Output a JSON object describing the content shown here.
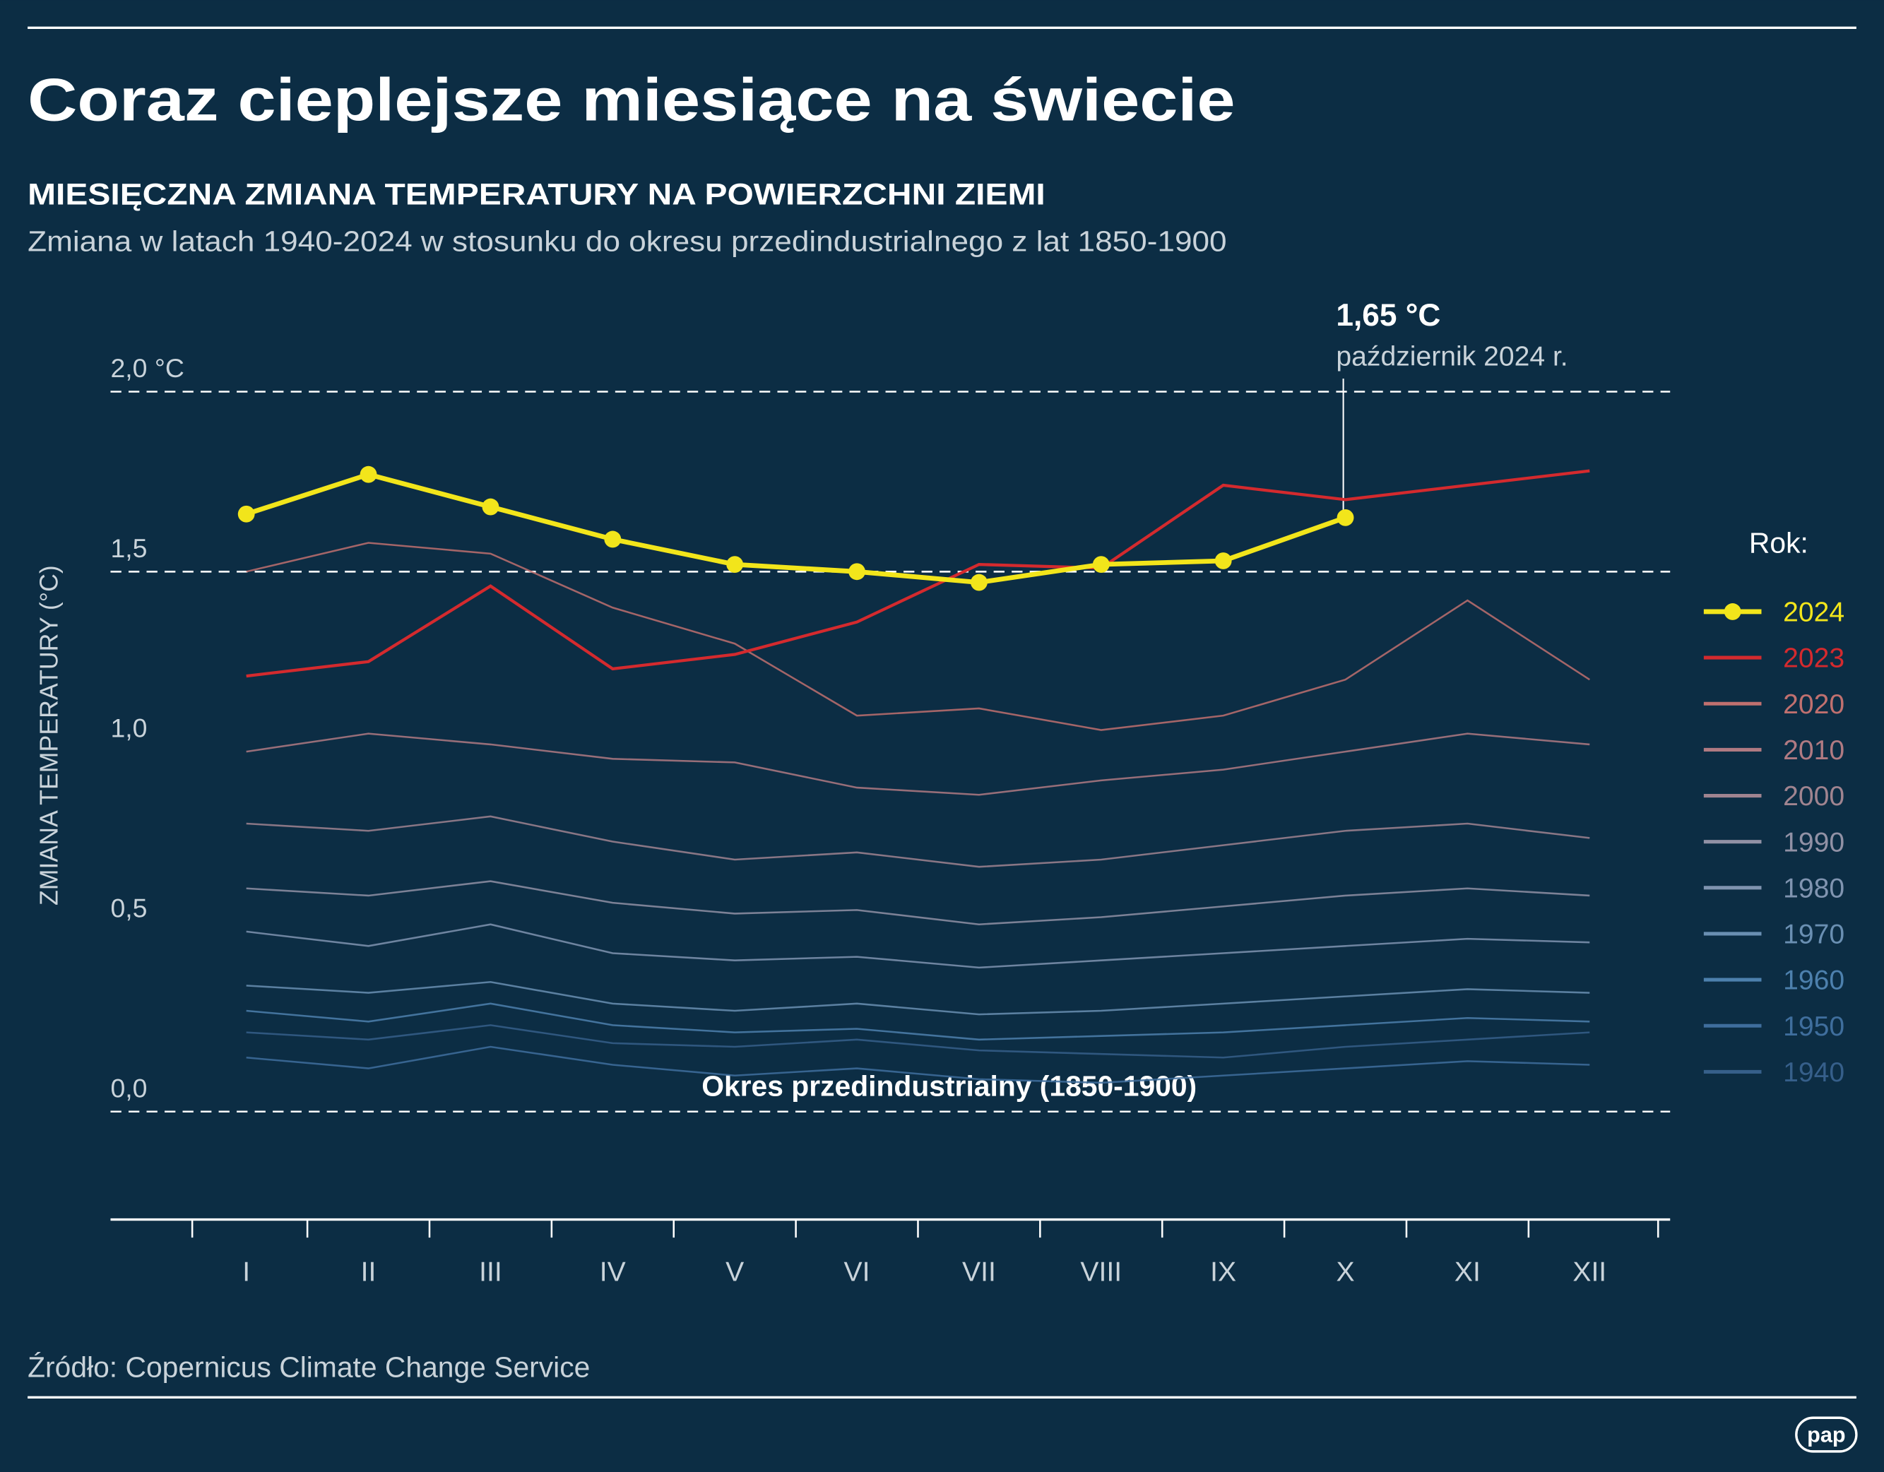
{
  "chart_data": {
    "type": "line",
    "title": "Coraz cieplejsze miesiące na świecie",
    "subtitle": "MIESIĘCZNA ZMIANA TEMPERATURY NA POWIERZCHNI ZIEMI",
    "description": "Zmiana w latach 1940-2024 w stosunku do okresu przedindustrialnego z lat 1850-1900",
    "y_axis_label": "ZMIANA TEMPERATURY (°C)",
    "legend_title": "Rok:",
    "baseline_label": "Okres przedindustrialny (1850-1900)",
    "annotation": {
      "value_label": "1,65 °C",
      "text": "październik 2024 r."
    },
    "source": "Źródło: Copernicus Climate Change Service",
    "logo": "pap",
    "categories": [
      "I",
      "II",
      "III",
      "IV",
      "V",
      "VI",
      "VII",
      "VIII",
      "IX",
      "X",
      "XI",
      "XII"
    ],
    "ylim": [
      -0.3,
      2.3
    ],
    "yticks": [
      {
        "value": 0,
        "label": "0,0"
      },
      {
        "value": 0.5,
        "label": "0,5"
      },
      {
        "value": 1,
        "label": "1,0"
      },
      {
        "value": 1.5,
        "label": "1,5"
      },
      {
        "value": 2,
        "label": "2,0 °C"
      }
    ],
    "dashed_lines": [
      0,
      1.5,
      2
    ],
    "series": [
      {
        "name": "2024",
        "color": "#f2e51b",
        "markers": true,
        "values": [
          1.66,
          1.77,
          1.68,
          1.59,
          1.52,
          1.5,
          1.47,
          1.52,
          1.53,
          1.65,
          null,
          null
        ]
      },
      {
        "name": "2023",
        "color": "#d42a2e",
        "values": [
          1.21,
          1.25,
          1.46,
          1.23,
          1.27,
          1.36,
          1.52,
          1.51,
          1.74,
          1.7,
          1.74,
          1.78
        ]
      },
      {
        "name": "2020",
        "color": "#c0706f",
        "values": [
          1.5,
          1.58,
          1.55,
          1.4,
          1.3,
          1.1,
          1.12,
          1.06,
          1.1,
          1.2,
          1.42,
          1.2
        ]
      },
      {
        "name": "2010",
        "color": "#b07a82",
        "values": [
          1.0,
          1.05,
          1.02,
          0.98,
          0.97,
          0.9,
          0.88,
          0.92,
          0.95,
          1.0,
          1.05,
          1.02
        ]
      },
      {
        "name": "2000",
        "color": "#a08490",
        "values": [
          0.8,
          0.78,
          0.82,
          0.75,
          0.7,
          0.72,
          0.68,
          0.7,
          0.74,
          0.78,
          0.8,
          0.76
        ]
      },
      {
        "name": "1990",
        "color": "#9191a5",
        "values": [
          0.62,
          0.6,
          0.64,
          0.58,
          0.55,
          0.56,
          0.52,
          0.54,
          0.57,
          0.6,
          0.62,
          0.6
        ]
      },
      {
        "name": "1980",
        "color": "#8094b0",
        "values": [
          0.5,
          0.46,
          0.52,
          0.44,
          0.42,
          0.43,
          0.4,
          0.42,
          0.44,
          0.46,
          0.48,
          0.47
        ]
      },
      {
        "name": "1970",
        "color": "#6a8fb2",
        "values": [
          0.35,
          0.33,
          0.36,
          0.3,
          0.28,
          0.3,
          0.27,
          0.28,
          0.3,
          0.32,
          0.34,
          0.33
        ]
      },
      {
        "name": "1960",
        "color": "#4d80ad",
        "values": [
          0.28,
          0.25,
          0.3,
          0.24,
          0.22,
          0.23,
          0.2,
          0.21,
          0.22,
          0.24,
          0.26,
          0.25
        ]
      },
      {
        "name": "1950",
        "color": "#3f6e9d",
        "values": [
          0.15,
          0.12,
          0.18,
          0.13,
          0.1,
          0.12,
          0.09,
          0.08,
          0.1,
          0.12,
          0.14,
          0.13
        ]
      },
      {
        "name": "1940",
        "color": "#365f8a",
        "values": [
          0.22,
          0.2,
          0.24,
          0.19,
          0.18,
          0.2,
          0.17,
          0.16,
          0.15,
          0.18,
          0.2,
          0.22
        ]
      }
    ]
  }
}
